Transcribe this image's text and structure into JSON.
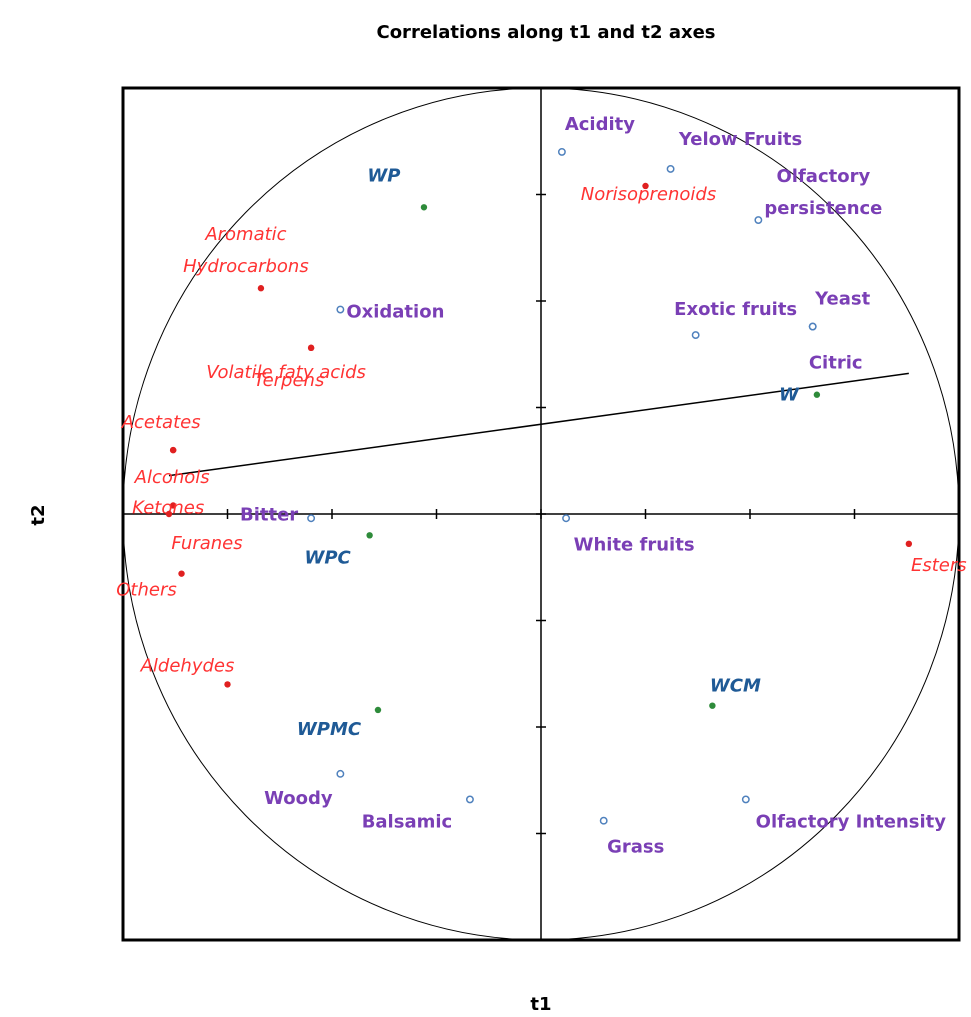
{
  "chart_data": {
    "type": "scatter",
    "title": "Correlations along t1 and t2 axes",
    "xlabel": "t1",
    "ylabel": "t2",
    "xlim": [
      -1,
      1
    ],
    "ylim": [
      -1,
      1
    ],
    "x_ticks": [
      "-1",
      "-0.75",
      "-0.5",
      "-0.25",
      "0",
      "0.25",
      "0.5",
      "0.75",
      "1"
    ],
    "y_ticks": [
      "1",
      "0.75",
      "0.5",
      "0.25",
      "0",
      "-0.25",
      "-0.5",
      "-0.75",
      "-1"
    ],
    "unit_circle": true,
    "colors": {
      "active_point": "#e02020",
      "active_label": "#ff3333",
      "supplementary_point": "#4f81bd",
      "supplementary_label": "#7a3fb5",
      "observation_point": "#2e8b3a",
      "observation_label": "#1f5a96"
    },
    "series": [
      {
        "points": [
          {
            "label": "Norisoprenoids",
            "x": 0.25,
            "y": 0.77
          },
          {
            "label": "Aromatic Hydrocarbons",
            "x": -0.67,
            "y": 0.53
          },
          {
            "label": "Terpens",
            "x": -0.55,
            "y": 0.39
          },
          {
            "label": "Volatile faty acids",
            "x": -0.55,
            "y": 0.39
          },
          {
            "label": "Acetates",
            "x": -0.88,
            "y": 0.15
          },
          {
            "label": "Alcohols",
            "x": -0.88,
            "y": 0.15
          },
          {
            "label": "Ketones",
            "x": -0.88,
            "y": 0.02
          },
          {
            "label": "Furanes",
            "x": -0.89,
            "y": 0.0
          },
          {
            "label": "Others",
            "x": -0.86,
            "y": -0.14
          },
          {
            "label": "Aldehydes",
            "x": -0.75,
            "y": -0.4
          },
          {
            "label": "Esters",
            "x": 0.88,
            "y": -0.07
          }
        ]
      },
      {
        "points": [
          {
            "label": "Acidity",
            "x": 0.05,
            "y": 0.85
          },
          {
            "label": "Yelow Fruits",
            "x": 0.31,
            "y": 0.81
          },
          {
            "label": "Olfactory persistence",
            "x": 0.52,
            "y": 0.69
          },
          {
            "label": "Exotic fruits",
            "x": 0.37,
            "y": 0.42
          },
          {
            "label": "Yeast",
            "x": 0.65,
            "y": 0.44
          },
          {
            "label": "Citric",
            "x": 0.65,
            "y": 0.44
          },
          {
            "label": "Oxidation",
            "x": -0.48,
            "y": 0.48
          },
          {
            "label": "Bitter",
            "x": -0.55,
            "y": -0.01
          },
          {
            "label": "White fruits",
            "x": 0.06,
            "y": -0.01
          },
          {
            "label": "Woody",
            "x": -0.48,
            "y": -0.61
          },
          {
            "label": "Balsamic",
            "x": -0.17,
            "y": -0.67
          },
          {
            "label": "Grass",
            "x": 0.15,
            "y": -0.72
          },
          {
            "label": "Olfactory Intensity",
            "x": 0.49,
            "y": -0.67
          }
        ]
      },
      {
        "points": [
          {
            "label": "WP",
            "x": -0.28,
            "y": 0.72
          },
          {
            "label": "W",
            "x": 0.66,
            "y": 0.28
          },
          {
            "label": "WPC",
            "x": -0.41,
            "y": -0.05
          },
          {
            "label": "WPMC",
            "x": -0.39,
            "y": -0.46
          },
          {
            "label": "WCM",
            "x": 0.41,
            "y": -0.45
          }
        ]
      }
    ],
    "trend_line": {
      "from": [
        -0.89,
        0.09
      ],
      "to": [
        0.88,
        0.33
      ]
    }
  }
}
